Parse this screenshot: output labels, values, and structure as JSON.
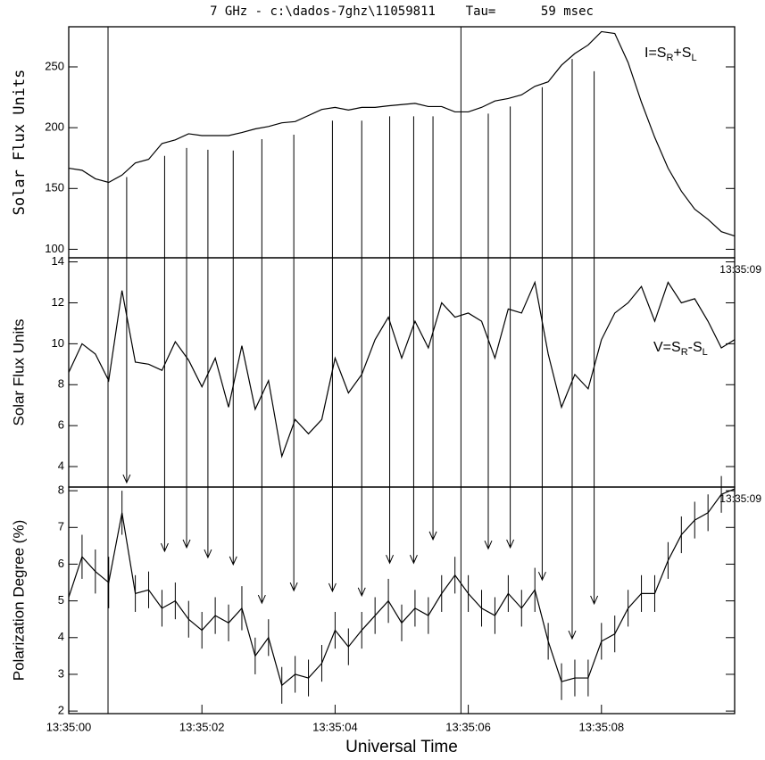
{
  "chart_data": [
    {
      "type": "line",
      "title": "7 GHz - c:\\dados-7ghz\\11059811    Tau=      59 msec",
      "ylabel": "Solar Flux Units",
      "formula": [
        "I=S",
        "R",
        "+S",
        "L"
      ],
      "color": "#000000",
      "xlim": [
        0,
        10
      ],
      "ylim": [
        93,
        283
      ],
      "yticks": [
        100,
        150,
        200,
        250
      ],
      "x": [
        0,
        0.2,
        0.4,
        0.6,
        0.8,
        1,
        1.2,
        1.4,
        1.6,
        1.8,
        2,
        2.2,
        2.4,
        2.6,
        2.8,
        3,
        3.2,
        3.4,
        3.6,
        3.8,
        4,
        4.2,
        4.4,
        4.6,
        4.8,
        5,
        5.2,
        5.4,
        5.6,
        5.8,
        6,
        6.2,
        6.4,
        6.6,
        6.8,
        7,
        7.2,
        7.4,
        7.6,
        7.8,
        8,
        8.2,
        8.4,
        8.6,
        8.8,
        9,
        9.2,
        9.4,
        9.6,
        9.8,
        10
      ],
      "values": [
        166.7,
        165,
        158,
        155,
        161,
        171,
        174,
        187,
        190,
        195,
        193.5,
        193.5,
        193.5,
        196,
        199,
        201,
        204,
        205,
        210,
        215,
        216.7,
        214.5,
        216.7,
        216.7,
        218,
        219,
        220,
        217.4,
        217.4,
        213,
        213,
        216.7,
        222,
        224,
        227,
        234,
        237.7,
        251.4,
        261,
        268,
        279,
        277.5,
        253.6,
        221,
        192,
        166.7,
        147.8,
        133,
        124.6,
        114.5,
        110.9
      ],
      "markers": [
        0.59,
        5.89
      ],
      "arrows": [
        {
          "x": 0.87,
          "start": 159.4,
          "end": 8.22
        },
        {
          "x": 1.44,
          "start": 176.8,
          "end": 6.35
        },
        {
          "x": 1.77,
          "start": 183.3,
          "end": 6.45
        },
        {
          "x": 2.09,
          "start": 181.9,
          "end": 6.18
        },
        {
          "x": 2.47,
          "start": 181.2,
          "end": 5.99
        },
        {
          "x": 2.9,
          "start": 190.6,
          "end": 4.94
        },
        {
          "x": 3.38,
          "start": 194.2,
          "end": 5.28
        },
        {
          "x": 3.96,
          "start": 205.8,
          "end": 5.26
        },
        {
          "x": 4.4,
          "start": 205.8,
          "end": 5.14
        },
        {
          "x": 4.82,
          "start": 209.4,
          "end": 6.03
        },
        {
          "x": 5.18,
          "start": 209.4,
          "end": 6.03
        },
        {
          "x": 5.47,
          "start": 209.4,
          "end": 6.67
        },
        {
          "x": 6.3,
          "start": 211.6,
          "end": 6.42
        },
        {
          "x": 6.63,
          "start": 217.4,
          "end": 6.45
        },
        {
          "x": 7.11,
          "start": 233.3,
          "end": 5.57
        },
        {
          "x": 7.56,
          "start": 256.5,
          "end": 3.97
        },
        {
          "x": 7.89,
          "start": 246.4,
          "end": 4.92
        }
      ]
    },
    {
      "type": "line",
      "ylabel": "Solar Flux Units",
      "formula": [
        "V=S",
        "R",
        "-S",
        "L"
      ],
      "corner_label": "13:35:09",
      "color": "#000000",
      "xlim": [
        0,
        10
      ],
      "ylim": [
        3,
        14.2
      ],
      "yticks": [
        4,
        6,
        8,
        10,
        12,
        14
      ],
      "x": [
        0,
        0.2,
        0.4,
        0.6,
        0.8,
        1,
        1.2,
        1.4,
        1.6,
        1.8,
        2,
        2.2,
        2.4,
        2.6,
        2.8,
        3,
        3.2,
        3.4,
        3.6,
        3.8,
        4,
        4.2,
        4.4,
        4.6,
        4.8,
        5,
        5.2,
        5.4,
        5.6,
        5.8,
        6,
        6.2,
        6.4,
        6.6,
        6.8,
        7,
        7.2,
        7.4,
        7.6,
        7.8,
        8,
        8.2,
        8.4,
        8.6,
        8.8,
        9,
        9.2,
        9.4,
        9.6,
        9.8,
        10
      ],
      "values": [
        8.6,
        10,
        9.5,
        8.2,
        12.6,
        9.1,
        9,
        8.7,
        10.1,
        9.2,
        7.9,
        9.3,
        6.9,
        9.9,
        6.8,
        8.2,
        4.5,
        6.3,
        5.6,
        6.3,
        9.3,
        7.6,
        8.5,
        10.2,
        11.3,
        9.3,
        11.1,
        9.8,
        12,
        11.3,
        11.5,
        11.1,
        9.3,
        11.7,
        11.5,
        13,
        9.5,
        6.9,
        8.5,
        7.8,
        10.2,
        11.5,
        12,
        12.8,
        11.1,
        13,
        12,
        12.2,
        11.1,
        9.8,
        10.2
      ]
    },
    {
      "type": "errorline",
      "ylabel": "Polarization Degree (%)",
      "xlabel": "Universal Time",
      "corner_label": "13:35:09",
      "color": "#000000",
      "xlim": [
        0,
        10
      ],
      "ylim": [
        1.93,
        8.1
      ],
      "yticks": [
        2,
        3,
        4,
        5,
        6,
        7,
        8
      ],
      "xticks": [
        {
          "value": 0,
          "label": "13:35:00"
        },
        {
          "value": 2,
          "label": "13:35:02"
        },
        {
          "value": 4,
          "label": "13:35:04"
        },
        {
          "value": 6,
          "label": "13:35:06"
        },
        {
          "value": 8,
          "label": "13:35:08"
        }
      ],
      "x": [
        0,
        0.2,
        0.4,
        0.6,
        0.8,
        1,
        1.2,
        1.4,
        1.6,
        1.8,
        2,
        2.2,
        2.4,
        2.6,
        2.8,
        3,
        3.2,
        3.4,
        3.6,
        3.8,
        4,
        4.2,
        4.4,
        4.6,
        4.8,
        5,
        5.2,
        5.4,
        5.6,
        5.8,
        6,
        6.2,
        6.4,
        6.6,
        6.8,
        7,
        7.2,
        7.4,
        7.6,
        7.8,
        8,
        8.2,
        8.4,
        8.6,
        8.8,
        9,
        9.2,
        9.4,
        9.6,
        9.8,
        10
      ],
      "values": [
        5.1,
        6.2,
        5.8,
        5.5,
        7.4,
        5.2,
        5.3,
        4.8,
        5,
        4.5,
        4.2,
        4.6,
        4.4,
        4.8,
        3.5,
        4,
        2.7,
        3,
        2.9,
        3.3,
        4.2,
        3.75,
        4.2,
        4.6,
        5,
        4.4,
        4.8,
        4.6,
        5.2,
        5.7,
        5.2,
        4.8,
        4.6,
        5.2,
        4.8,
        5.3,
        3.9,
        2.8,
        2.9,
        2.9,
        3.9,
        4.1,
        4.8,
        5.2,
        5.2,
        6.1,
        6.8,
        7.2,
        7.4,
        7.9,
        8.05
      ],
      "errors": [
        0.6,
        0.6,
        0.6,
        0.7,
        0.6,
        0.5,
        0.5,
        0.5,
        0.5,
        0.5,
        0.5,
        0.5,
        0.5,
        0.6,
        0.5,
        0.5,
        0.5,
        0.5,
        0.5,
        0.5,
        0.5,
        0.5,
        0.5,
        0.5,
        0.6,
        0.5,
        0.5,
        0.5,
        0.5,
        0.5,
        0.5,
        0.5,
        0.5,
        0.5,
        0.5,
        0.6,
        0.5,
        0.5,
        0.5,
        0.5,
        0.5,
        0.5,
        0.5,
        0.5,
        0.5,
        0.5,
        0.5,
        0.5,
        0.5,
        0.5,
        0.5
      ]
    }
  ]
}
